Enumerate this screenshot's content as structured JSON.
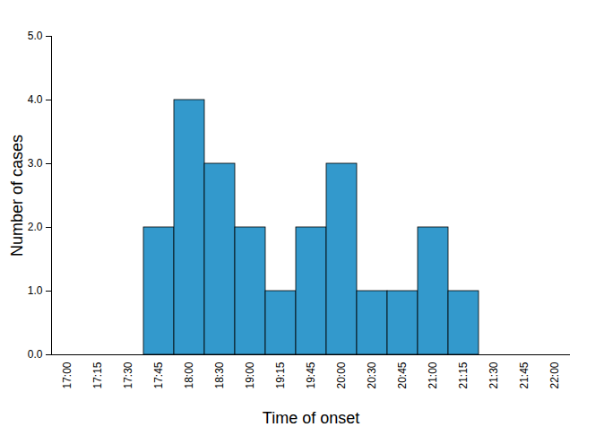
{
  "chart_data": {
    "type": "bar",
    "x_label": "Time of onset",
    "y_label": "Number of cases",
    "categories": [
      "17:00",
      "17:15",
      "17:30",
      "17:45",
      "18:00",
      "18:30",
      "19:00",
      "19:15",
      "19:45",
      "20:00",
      "20:30",
      "20:45",
      "21:00",
      "21:15",
      "21:30",
      "21:45",
      "22:00"
    ],
    "values": [
      0,
      0,
      0,
      2,
      4,
      3,
      2,
      1,
      2,
      3,
      1,
      1,
      2,
      1,
      0,
      0,
      0
    ],
    "color": "#3399cc",
    "ylim": [
      0,
      5
    ],
    "yticks": [
      0,
      1,
      2,
      3,
      4,
      5
    ],
    "grid": false
  }
}
